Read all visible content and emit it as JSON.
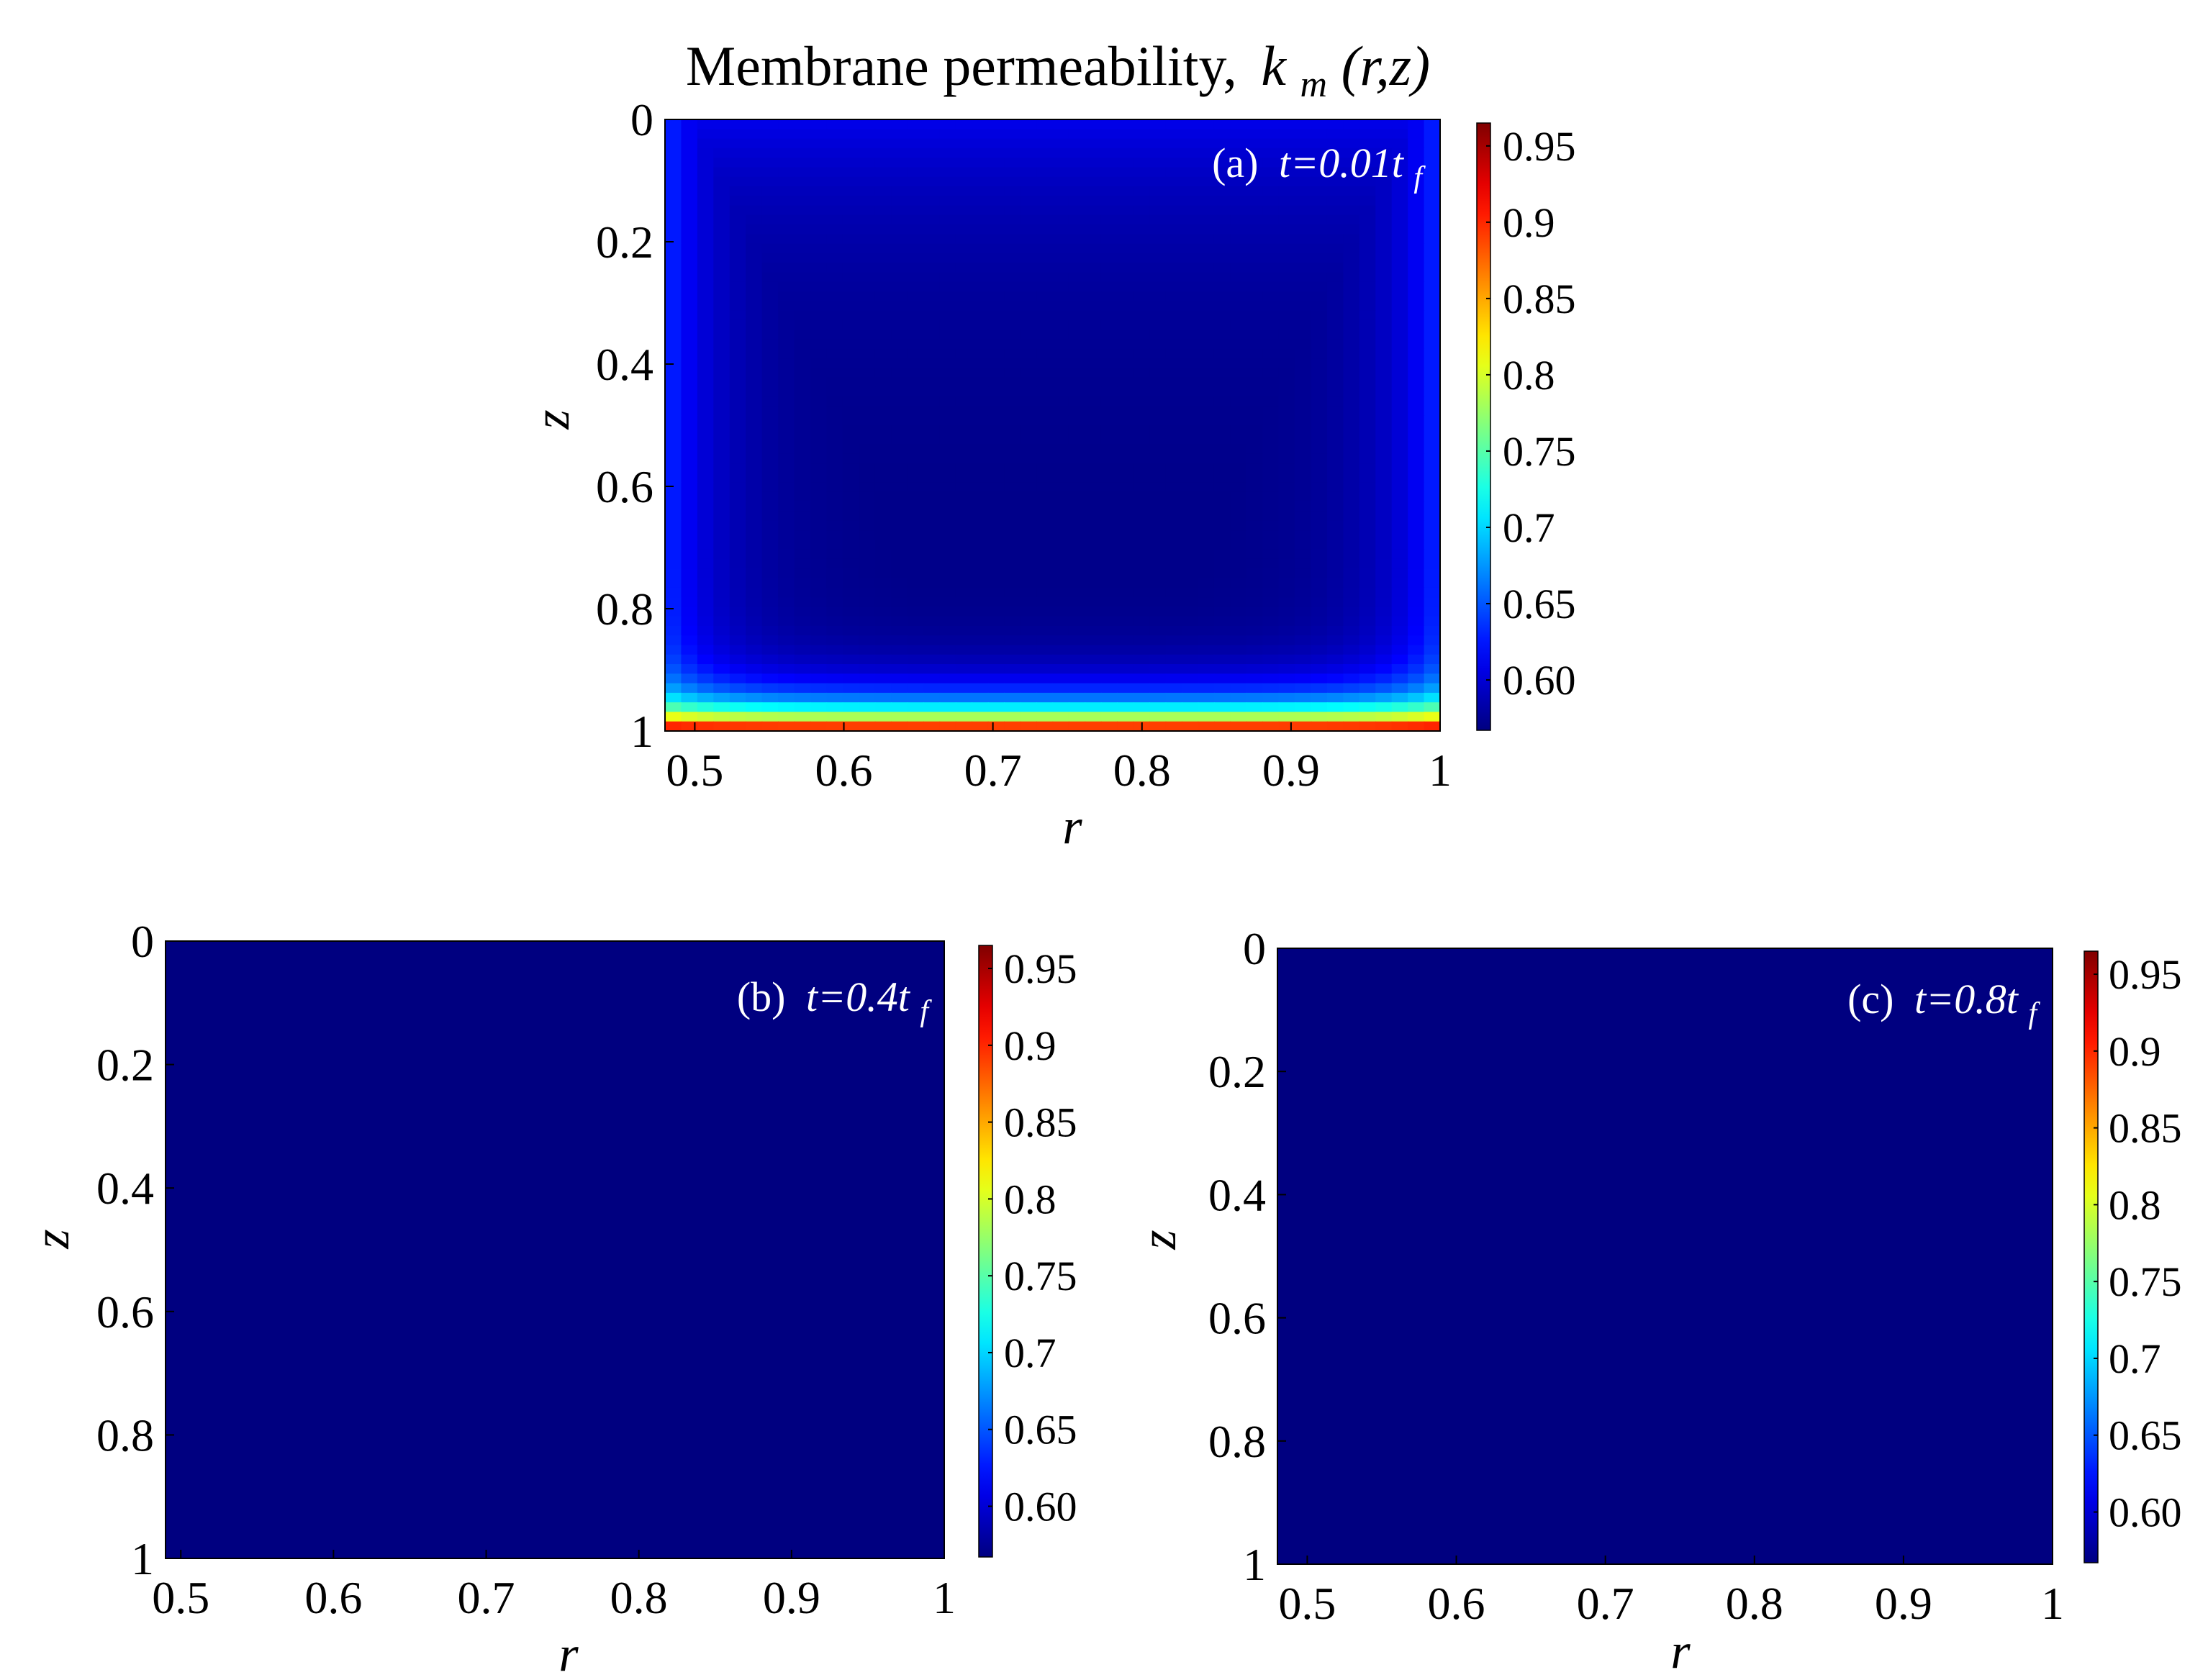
{
  "chart_data": {
    "type": "heatmap",
    "title": "Membrane permeability,",
    "title_math": {
      "base": "k",
      "sub": "m",
      "args": "(r,z)"
    },
    "colormap": "jet",
    "color_range": [
      0.567,
      0.965
    ],
    "colorbar_ticks": [
      "0.95",
      "0.9",
      "0.85",
      "0.8",
      "0.75",
      "0.7",
      "0.65",
      "0.60"
    ],
    "colorbar_tick_values": [
      0.95,
      0.9,
      0.85,
      0.8,
      0.75,
      0.7,
      0.65,
      0.6
    ],
    "panels": [
      {
        "id": "a",
        "label_prefix": "(a)",
        "label_time": "t=0.01t",
        "label_sub": "f",
        "xlabel": "r",
        "ylabel": "z",
        "xlim": [
          0.48,
          1.0
        ],
        "ylim": [
          0,
          1
        ],
        "y_reversed": true,
        "xticks": [
          "0.5",
          "0.6",
          "0.7",
          "0.8",
          "0.9",
          "1"
        ],
        "xtick_values": [
          0.5,
          0.6,
          0.7,
          0.8,
          0.9,
          1.0
        ],
        "yticks": [
          "0",
          "0.2",
          "0.4",
          "0.6",
          "0.8",
          "1"
        ],
        "ytick_values": [
          0,
          0.2,
          0.4,
          0.6,
          0.8,
          1.0
        ],
        "field": {
          "interior_min": 0.57,
          "side_wall_value": 0.635,
          "bottom_boundary_value": 0.965,
          "bottom_layer_thickness": 0.12,
          "top_value": 0.6
        }
      },
      {
        "id": "b",
        "label_prefix": "(b)",
        "label_time": "t=0.4t",
        "label_sub": "f",
        "xlabel": "r",
        "ylabel": "z",
        "xlim": [
          0.49,
          1.0
        ],
        "ylim": [
          0,
          1
        ],
        "y_reversed": true,
        "xticks": [
          "0.5",
          "0.6",
          "0.7",
          "0.8",
          "0.9",
          "1"
        ],
        "xtick_values": [
          0.5,
          0.6,
          0.7,
          0.8,
          0.9,
          1.0
        ],
        "yticks": [
          "0",
          "0.2",
          "0.4",
          "0.6",
          "0.8",
          "1"
        ],
        "ytick_values": [
          0,
          0.2,
          0.4,
          0.6,
          0.8,
          1.0
        ],
        "field": {
          "uniform_value": 0.567
        }
      },
      {
        "id": "c",
        "label_prefix": "(c)",
        "label_time": "t=0.8t",
        "label_sub": "f",
        "xlabel": "r",
        "ylabel": "z",
        "xlim": [
          0.48,
          1.0
        ],
        "ylim": [
          0,
          1
        ],
        "y_reversed": true,
        "xticks": [
          "0.5",
          "0.6",
          "0.7",
          "0.8",
          "0.9",
          "1"
        ],
        "xtick_values": [
          0.5,
          0.6,
          0.7,
          0.8,
          0.9,
          1.0
        ],
        "yticks": [
          "0",
          "0.2",
          "0.4",
          "0.6",
          "0.8",
          "1"
        ],
        "ytick_values": [
          0,
          0.2,
          0.4,
          0.6,
          0.8,
          1.0
        ],
        "field": {
          "uniform_value": 0.567
        }
      }
    ]
  }
}
